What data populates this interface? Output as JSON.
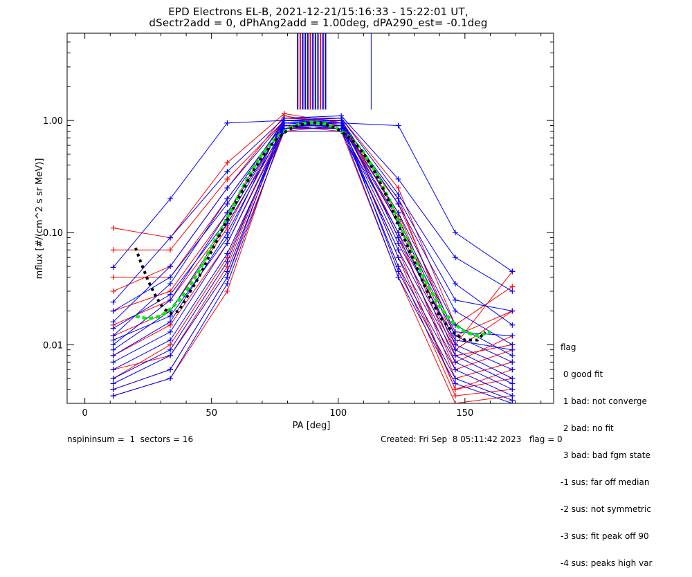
{
  "chart_data": {
    "type": "line",
    "title": "EPD Electrons EL-B, 2021-12-21/15:16:33 - 15:22:01 UT,",
    "subtitle": "dSectr2add = 0, dPhAng2add = 1.00deg, dPA290_est=  -0.1deg",
    "xlabel": "PA [deg]",
    "ylabel": "mflux [#/(cm^2 s sr MeV)]",
    "xlim": [
      -7,
      185
    ],
    "ylim": [
      0.003,
      6
    ],
    "yscale": "log",
    "x_ticks": [
      "0",
      "50",
      "100",
      "150"
    ],
    "x_tick_values": [
      0,
      50,
      100,
      150
    ],
    "y_ticks": [
      "0.01",
      "0.10",
      "1.00"
    ],
    "y_tick_values": [
      0.01,
      0.1,
      1.0
    ],
    "colors": {
      "series_a": "#ff0000",
      "series_b": "#0000ff",
      "fit_green": "#00ee00",
      "fit_black": "#000000"
    },
    "pa_bins": [
      11.2,
      33.7,
      56.2,
      78.7,
      101.2,
      123.7,
      146.2,
      168.7
    ],
    "red_profiles": [
      [
        0.11,
        0.09,
        0.42,
        1.15,
        0.95,
        0.2,
        0.01,
        0.045
      ],
      [
        0.07,
        0.07,
        0.3,
        1.0,
        1.05,
        0.25,
        0.015,
        0.033
      ],
      [
        0.04,
        0.04,
        0.2,
        0.95,
        0.9,
        0.15,
        0.009,
        0.02
      ],
      [
        0.02,
        0.03,
        0.15,
        1.05,
        1.0,
        0.12,
        0.007,
        0.012
      ],
      [
        0.008,
        0.015,
        0.08,
        0.9,
        0.95,
        0.1,
        0.005,
        0.007
      ],
      [
        0.005,
        0.01,
        0.06,
        0.85,
        0.85,
        0.07,
        0.004,
        0.005
      ],
      [
        0.004,
        0.006,
        0.04,
        0.8,
        0.9,
        0.05,
        0.0035,
        0.004
      ],
      [
        0.012,
        0.02,
        0.11,
        1.0,
        1.0,
        0.09,
        0.006,
        0.009
      ],
      [
        0.0035,
        0.005,
        0.03,
        0.9,
        0.8,
        0.04,
        0.003,
        0.0035
      ],
      [
        0.03,
        0.05,
        0.25,
        1.1,
        0.9,
        0.18,
        0.012,
        0.02
      ],
      [
        0.006,
        0.008,
        0.05,
        0.95,
        0.95,
        0.06,
        0.004,
        0.006
      ],
      [
        0.015,
        0.025,
        0.12,
        0.85,
        1.0,
        0.14,
        0.008,
        0.01
      ]
    ],
    "blue_profiles": [
      [
        0.049,
        0.2,
        0.95,
        1.0,
        0.95,
        0.9,
        0.1,
        0.045
      ],
      [
        0.024,
        0.09,
        0.35,
        1.05,
        1.1,
        0.3,
        0.06,
        0.03
      ],
      [
        0.016,
        0.05,
        0.25,
        1.0,
        1.05,
        0.22,
        0.035,
        0.015
      ],
      [
        0.012,
        0.035,
        0.2,
        0.95,
        1.0,
        0.18,
        0.02,
        0.01
      ],
      [
        0.01,
        0.025,
        0.15,
        0.9,
        0.95,
        0.15,
        0.015,
        0.008
      ],
      [
        0.009,
        0.02,
        0.12,
        0.85,
        0.9,
        0.12,
        0.012,
        0.007
      ],
      [
        0.008,
        0.016,
        0.1,
        0.9,
        0.85,
        0.1,
        0.01,
        0.006
      ],
      [
        0.007,
        0.013,
        0.08,
        0.85,
        0.9,
        0.08,
        0.009,
        0.005
      ],
      [
        0.006,
        0.011,
        0.065,
        0.8,
        0.8,
        0.07,
        0.008,
        0.0045
      ],
      [
        0.005,
        0.009,
        0.055,
        0.95,
        0.95,
        0.06,
        0.007,
        0.004
      ],
      [
        0.0045,
        0.008,
        0.045,
        0.9,
        0.9,
        0.05,
        0.006,
        0.0035
      ],
      [
        0.004,
        0.006,
        0.04,
        1.0,
        1.0,
        0.045,
        0.005,
        0.0032
      ],
      [
        0.011,
        0.018,
        0.09,
        1.05,
        1.05,
        0.09,
        0.011,
        0.009
      ],
      [
        0.014,
        0.028,
        0.13,
        0.95,
        0.9,
        0.13,
        0.013,
        0.012
      ],
      [
        0.0035,
        0.005,
        0.035,
        0.85,
        0.85,
        0.04,
        0.0045,
        0.003
      ],
      [
        0.02,
        0.04,
        0.18,
        1.0,
        0.95,
        0.2,
        0.025,
        0.02
      ]
    ],
    "green_fit": {
      "x": [
        20,
        25,
        30,
        35,
        40,
        45,
        50,
        55,
        60,
        65,
        70,
        75,
        80,
        85,
        90,
        95,
        100,
        105,
        110,
        115,
        120,
        125,
        130,
        135,
        140,
        145,
        150,
        155,
        160
      ],
      "y": [
        0.018,
        0.017,
        0.018,
        0.022,
        0.03,
        0.045,
        0.075,
        0.12,
        0.2,
        0.33,
        0.5,
        0.68,
        0.84,
        0.94,
        0.96,
        0.93,
        0.84,
        0.7,
        0.52,
        0.34,
        0.2,
        0.11,
        0.06,
        0.035,
        0.022,
        0.016,
        0.013,
        0.012,
        0.013
      ]
    },
    "black_fit": {
      "x": [
        20,
        22,
        25,
        28,
        31,
        34,
        37,
        40,
        45,
        50,
        55,
        60,
        65,
        70,
        75,
        80,
        85,
        90,
        95,
        100,
        105,
        110,
        115,
        120,
        125,
        130,
        135,
        140,
        145,
        150,
        155,
        158
      ],
      "y": [
        0.073,
        0.055,
        0.037,
        0.027,
        0.021,
        0.019,
        0.02,
        0.026,
        0.04,
        0.068,
        0.115,
        0.19,
        0.31,
        0.48,
        0.66,
        0.82,
        0.92,
        0.95,
        0.92,
        0.83,
        0.69,
        0.51,
        0.33,
        0.19,
        0.1,
        0.055,
        0.03,
        0.018,
        0.013,
        0.011,
        0.011,
        0.013
      ]
    }
  },
  "legend": {
    "title": "flag",
    "items": [
      " 0 good fit",
      " 1 bad: not converge",
      " 2 bad: no fit",
      " 3 bad: bad fgm state",
      "-1 sus: far off median",
      "-2 sus: not symmetric",
      "-3 sus: fit peak off 90",
      "-4 sus: peaks high var"
    ]
  },
  "footer": {
    "left": "nspininsum =  1  sectors = 16",
    "right": "Created: Fri Sep  8 05:11:42 2023   flag = 0"
  }
}
